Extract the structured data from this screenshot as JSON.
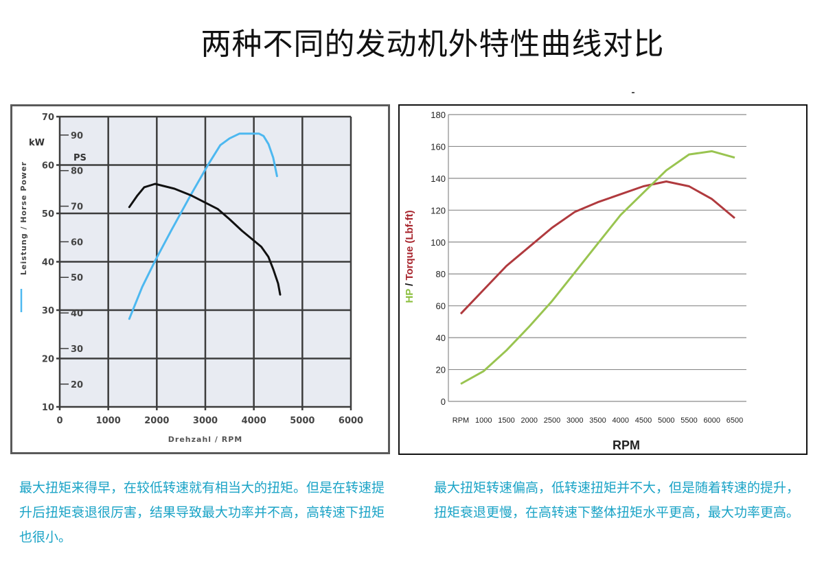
{
  "title": "两种不同的发动机外特性曲线对比",
  "chart_data": [
    {
      "type": "line",
      "xlabel": "Drehzahl / RPM",
      "ylabel": "Leistung / Horse Power",
      "y_unit_left": "kW",
      "y_unit_right": "PS",
      "xlim": [
        0,
        6000
      ],
      "ylim": [
        10,
        70
      ],
      "xticks": [
        0,
        1000,
        2000,
        3000,
        4000,
        5000,
        6000
      ],
      "yticks": [
        10,
        20,
        30,
        40,
        50,
        60,
        70
      ],
      "ps_ticks": [
        20,
        30,
        40,
        50,
        60,
        70,
        80,
        90
      ],
      "grid": true,
      "background": "#e8ebf2",
      "series": [
        {
          "color": "#4db8f0",
          "x": [
            1433,
            1700,
            1965,
            2300,
            2700,
            3060,
            3308,
            3500,
            3706,
            4104,
            4200,
            4303,
            4400,
            4478
          ],
          "y": [
            28.2,
            34.8,
            40.2,
            46.5,
            53.8,
            60.1,
            64.1,
            65.5,
            66.5,
            66.5,
            66.0,
            64.3,
            61.5,
            57.7
          ]
        },
        {
          "color": "#111111",
          "x": [
            1433,
            1600,
            1741,
            1965,
            2363,
            2711,
            3259,
            3500,
            3756,
            4154,
            4300,
            4403,
            4500,
            4542
          ],
          "y": [
            51.3,
            53.7,
            55.4,
            56.1,
            55.1,
            53.7,
            50.9,
            48.8,
            46.4,
            43.1,
            41.0,
            38.4,
            35.5,
            33.2
          ]
        }
      ]
    },
    {
      "type": "line",
      "xlabel": "RPM",
      "ylabel_parts": [
        {
          "text": "HP",
          "color": "#8cbf3f"
        },
        {
          "text": " / ",
          "color": "#111111"
        },
        {
          "text": "Torque (Lbf-ft)",
          "color": "#a8262e"
        }
      ],
      "categories": [
        "RPM",
        "1000",
        "1500",
        "2000",
        "2500",
        "3000",
        "3500",
        "4000",
        "4500",
        "5000",
        "5500",
        "6000",
        "6500"
      ],
      "ylim": [
        0,
        180
      ],
      "yticks": [
        0,
        20,
        40,
        60,
        80,
        100,
        120,
        140,
        160,
        180
      ],
      "grid": true,
      "series": [
        {
          "color": "#b03a3e",
          "values": [
            55,
            70,
            85,
            97,
            109,
            119,
            125,
            130,
            135,
            138,
            135,
            127,
            115
          ]
        },
        {
          "color": "#99c450",
          "values": [
            11,
            19,
            32,
            47,
            63,
            81,
            99,
            117,
            131,
            145,
            155,
            157,
            153
          ]
        }
      ]
    }
  ],
  "captions": {
    "left": "最大扭矩来得早，在较低转速就有相当大的扭矩。但是在转速提升后扭矩衰退很厉害，结果导致最大功率并不高，高转速下扭矩也很小。",
    "right": "最大扭矩转速偏高，低转速扭矩并不大，但是随着转速的提升，扭矩衰退更慢，在高转速下整体扭矩水平更高，最大功率更高。"
  }
}
